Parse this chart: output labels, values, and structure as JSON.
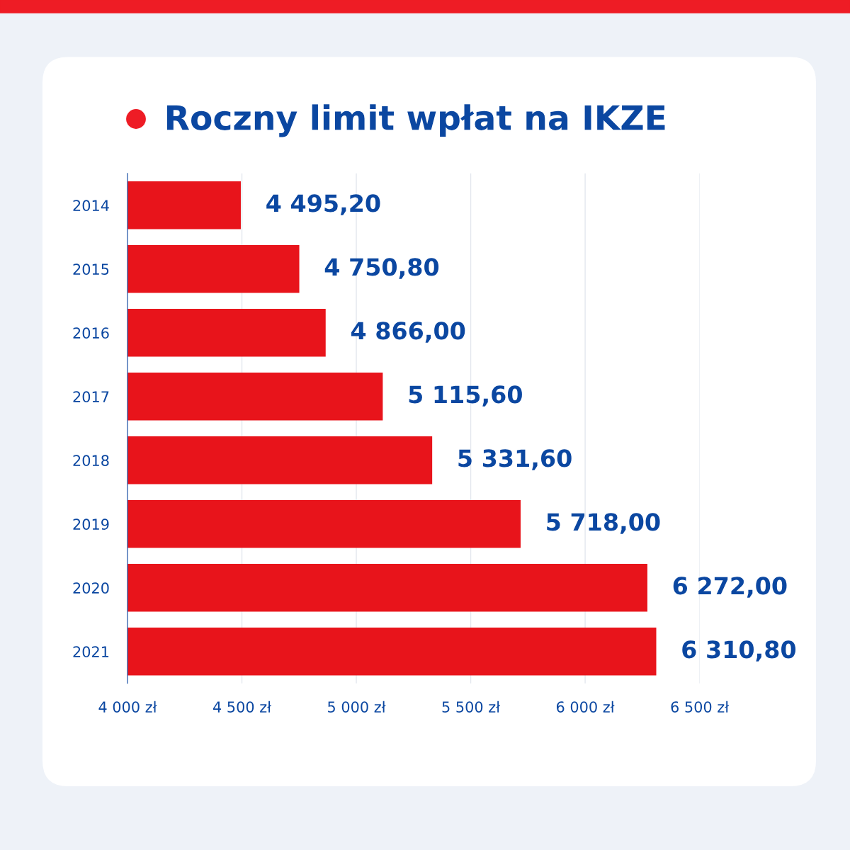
{
  "chart_data": {
    "type": "bar",
    "orientation": "horizontal",
    "title": "Roczny limit wpłat na IKZE",
    "categories": [
      "2014",
      "2015",
      "2016",
      "2017",
      "2018",
      "2019",
      "2020",
      "2021"
    ],
    "values": [
      4495.2,
      4750.8,
      4866.0,
      5115.6,
      5331.6,
      5718.0,
      6272.0,
      6310.8
    ],
    "value_labels": [
      "4 495,20",
      "4 750,80",
      "4 866,00",
      "5 115,60",
      "5 331,60",
      "5 718,00",
      "6 272,00",
      "6 310,80"
    ],
    "color": "#e8141b",
    "xlim": [
      4000,
      6500
    ],
    "xticks": [
      {
        "value": 4000,
        "label": "4 000 zł"
      },
      {
        "value": 4500,
        "label": "4 500 zł"
      },
      {
        "value": 5000,
        "label": "5 000 zł"
      },
      {
        "value": 5500,
        "label": "5 500 zł"
      },
      {
        "value": 6000,
        "label": "6 000 zł"
      },
      {
        "value": 6500,
        "label": "6 500 zł"
      }
    ],
    "grid": "x",
    "legend": false
  }
}
